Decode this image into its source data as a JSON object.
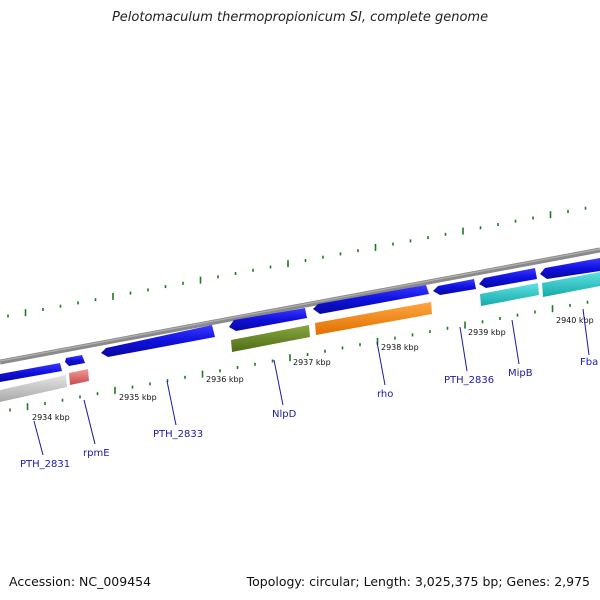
{
  "title": "Pelotomaculum thermopropionicum SI, complete genome",
  "footer": {
    "accession": "Accession: NC_009454",
    "summary": "Topology: circular; Length: 3,025,375 bp; Genes: 2,975"
  },
  "colors": {
    "backbone": "#8a8a8a",
    "tick": "#1f7a1f",
    "label": "#1a1aa6",
    "gene_blue": "#1010e0",
    "gene_grey": "#c8c8c8",
    "gene_pink": "#e06a6a",
    "gene_olive": "#6b8e23",
    "gene_orange": "#ff8c00",
    "gene_cyan": "#20c8c8"
  },
  "kbp_labels": [
    "2934 kbp",
    "2935 kbp",
    "2936 kbp",
    "2937 kbp",
    "2938 kbp",
    "2939 kbp",
    "2940 kbp"
  ],
  "gene_labels": [
    "PTH_2831",
    "rpmE",
    "PTH_2833",
    "NlpD",
    "rho",
    "PTH_2836",
    "MipB",
    "Fba"
  ]
}
